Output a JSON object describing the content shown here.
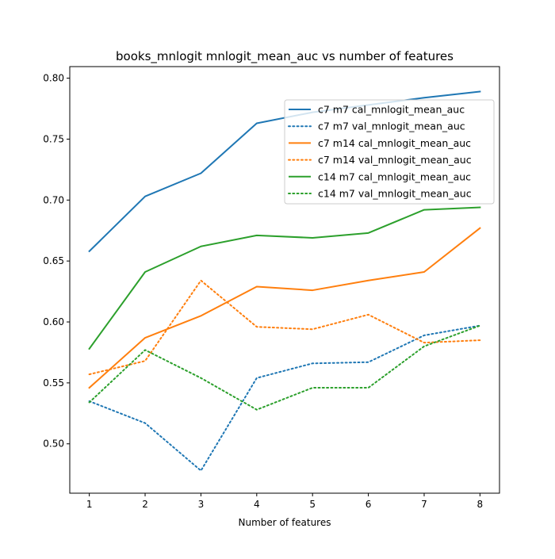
{
  "chart_data": {
    "type": "line",
    "title": "books_mnlogit mnlogit_mean_auc vs number of features",
    "xlabel": "Number of features",
    "ylabel": "",
    "x": [
      1,
      2,
      3,
      4,
      5,
      6,
      7,
      8
    ],
    "xlim": [
      0.65,
      8.35
    ],
    "ylim": [
      0.4595,
      0.8095
    ],
    "xticks": [
      1,
      2,
      3,
      4,
      5,
      6,
      7,
      8
    ],
    "yticks": [
      0.5,
      0.55,
      0.6,
      0.65,
      0.7,
      0.75,
      0.8
    ],
    "ytick_labels": [
      "0.50",
      "0.55",
      "0.60",
      "0.65",
      "0.70",
      "0.75",
      "0.80"
    ],
    "grid": false,
    "legend_position": "upper-right",
    "series": [
      {
        "name": "c7 m7 cal_mnlogit_mean_auc",
        "color": "#1f77b4",
        "style": "solid",
        "values": [
          0.658,
          0.703,
          0.722,
          0.763,
          0.772,
          0.778,
          0.784,
          0.789
        ]
      },
      {
        "name": "c7 m7 val_mnlogit_mean_auc",
        "color": "#1f77b4",
        "style": "dotted",
        "values": [
          0.535,
          0.517,
          0.478,
          0.554,
          0.566,
          0.567,
          0.589,
          0.597
        ]
      },
      {
        "name": "c7 m14 cal_mnlogit_mean_auc",
        "color": "#ff7f0e",
        "style": "solid",
        "values": [
          0.546,
          0.587,
          0.605,
          0.629,
          0.626,
          0.634,
          0.641,
          0.677
        ]
      },
      {
        "name": "c7 m14 val_mnlogit_mean_auc",
        "color": "#ff7f0e",
        "style": "dotted",
        "values": [
          0.557,
          0.568,
          0.634,
          0.596,
          0.594,
          0.606,
          0.583,
          0.585
        ]
      },
      {
        "name": "c14 m7 cal_mnlogit_mean_auc",
        "color": "#2ca02c",
        "style": "solid",
        "values": [
          0.578,
          0.641,
          0.662,
          0.671,
          0.669,
          0.673,
          0.692,
          0.694
        ]
      },
      {
        "name": "c14 m7 val_mnlogit_mean_auc",
        "color": "#2ca02c",
        "style": "dotted",
        "values": [
          0.534,
          0.577,
          0.554,
          0.528,
          0.546,
          0.546,
          0.58,
          0.597
        ]
      }
    ]
  }
}
